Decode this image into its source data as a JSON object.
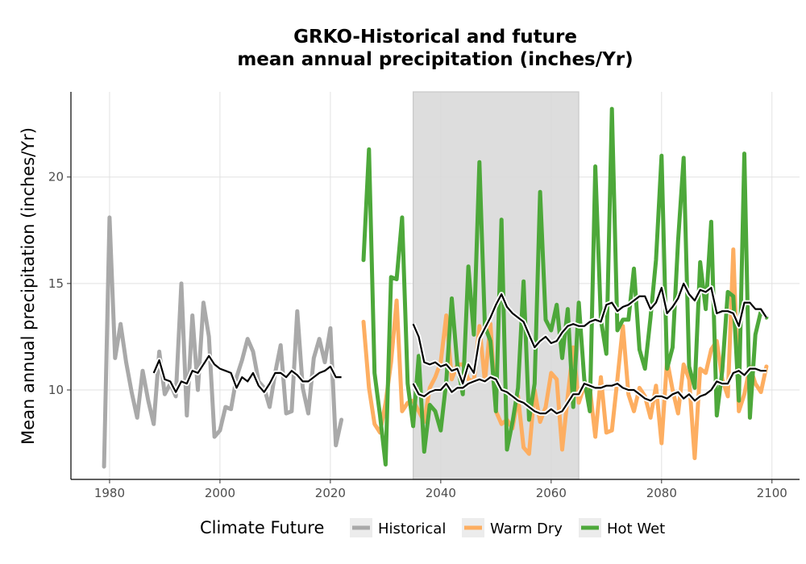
{
  "chart_data": {
    "type": "line",
    "title": [
      "GRKO-Historical and future",
      "mean annual precipitation (inches/Yr)"
    ],
    "xlabel": "",
    "ylabel": "Mean annual precipitation (inches/Yr)",
    "xlim": [
      1973,
      2105
    ],
    "ylim": [
      5.8,
      24
    ],
    "x_ticks": [
      1980,
      2000,
      2020,
      2040,
      2060,
      2080,
      2100
    ],
    "y_ticks": [
      10,
      15,
      20
    ],
    "grid": true,
    "shaded_period": [
      2035,
      2065
    ],
    "legend": {
      "title": "Climate Future",
      "position": "bottom",
      "entries": [
        "Historical",
        "Warm Dry",
        "Hot Wet"
      ]
    },
    "series": [
      {
        "name": "Historical",
        "color": "#A9A9A9",
        "x": [
          1979,
          1980,
          1981,
          1982,
          1983,
          1984,
          1985,
          1986,
          1987,
          1988,
          1989,
          1990,
          1991,
          1992,
          1993,
          1994,
          1995,
          1996,
          1997,
          1998,
          1999,
          2000,
          2001,
          2002,
          2003,
          2004,
          2005,
          2006,
          2007,
          2008,
          2009,
          2010,
          2011,
          2012,
          2013,
          2014,
          2015,
          2016,
          2017,
          2018,
          2019,
          2020,
          2021,
          2022
        ],
        "values": [
          6.4,
          18.1,
          11.5,
          13.1,
          11.3,
          9.9,
          8.7,
          10.9,
          9.5,
          8.4,
          11.8,
          9.8,
          10.3,
          9.7,
          15.0,
          8.8,
          13.5,
          10.0,
          14.1,
          12.5,
          7.8,
          8.1,
          9.2,
          9.1,
          10.6,
          11.4,
          12.4,
          11.8,
          10.4,
          10.1,
          9.2,
          10.8,
          12.1,
          8.9,
          9.0,
          13.7,
          10.1,
          8.9,
          11.5,
          12.4,
          11.3,
          12.9,
          7.4,
          8.6
        ]
      },
      {
        "name": "Warm Dry",
        "color": "#FDAE61",
        "x": [
          2026,
          2027,
          2028,
          2029,
          2030,
          2031,
          2032,
          2033,
          2034,
          2035,
          2036,
          2037,
          2038,
          2039,
          2040,
          2041,
          2042,
          2043,
          2044,
          2045,
          2046,
          2047,
          2048,
          2049,
          2050,
          2051,
          2052,
          2053,
          2054,
          2055,
          2056,
          2057,
          2058,
          2059,
          2060,
          2061,
          2062,
          2063,
          2064,
          2065,
          2066,
          2067,
          2068,
          2069,
          2070,
          2071,
          2072,
          2073,
          2074,
          2075,
          2076,
          2077,
          2078,
          2079,
          2080,
          2081,
          2082,
          2083,
          2084,
          2085,
          2086,
          2087,
          2088,
          2089,
          2090,
          2091,
          2092,
          2093,
          2094,
          2095,
          2096,
          2097,
          2098,
          2099
        ],
        "values": [
          13.2,
          10.1,
          8.4,
          8.0,
          9.4,
          11.3,
          14.2,
          9.0,
          9.4,
          9.5,
          9.0,
          8.5,
          10.1,
          10.6,
          11.3,
          13.5,
          10.5,
          11.2,
          11.2,
          10.5,
          10.4,
          13.0,
          10.4,
          13.1,
          9.0,
          8.4,
          8.6,
          8.2,
          9.7,
          7.3,
          7.0,
          10.0,
          8.5,
          9.2,
          10.8,
          10.5,
          7.2,
          9.7,
          12.0,
          9.4,
          10.2,
          10.1,
          7.8,
          10.6,
          8.0,
          8.1,
          10.5,
          13.0,
          9.8,
          9.0,
          10.1,
          9.7,
          8.7,
          10.2,
          7.5,
          11.4,
          10.0,
          8.9,
          11.2,
          10.5,
          6.8,
          11.0,
          10.8,
          11.9,
          12.3,
          10.5,
          9.7,
          16.6,
          9.0,
          9.8,
          11.1,
          10.3,
          9.9,
          11.1
        ]
      },
      {
        "name": "Hot Wet",
        "color": "#4DA83A",
        "x": [
          2026,
          2027,
          2028,
          2029,
          2030,
          2031,
          2032,
          2033,
          2034,
          2035,
          2036,
          2037,
          2038,
          2039,
          2040,
          2041,
          2042,
          2043,
          2044,
          2045,
          2046,
          2047,
          2048,
          2049,
          2050,
          2051,
          2052,
          2053,
          2054,
          2055,
          2056,
          2057,
          2058,
          2059,
          2060,
          2061,
          2062,
          2063,
          2064,
          2065,
          2066,
          2067,
          2068,
          2069,
          2070,
          2071,
          2072,
          2073,
          2074,
          2075,
          2076,
          2077,
          2078,
          2079,
          2080,
          2081,
          2082,
          2083,
          2084,
          2085,
          2086,
          2087,
          2088,
          2089,
          2090,
          2091,
          2092,
          2093,
          2094,
          2095,
          2096,
          2097,
          2098,
          2099
        ],
        "values": [
          16.1,
          21.3,
          10.8,
          8.8,
          6.5,
          15.3,
          15.2,
          18.1,
          10.3,
          8.3,
          11.6,
          7.1,
          9.3,
          9.0,
          8.1,
          10.4,
          14.3,
          11.2,
          9.8,
          15.8,
          12.6,
          20.7,
          13.0,
          12.3,
          9.0,
          18.0,
          7.2,
          8.5,
          10.1,
          15.1,
          8.6,
          10.3,
          19.3,
          13.3,
          12.8,
          14.0,
          11.5,
          13.8,
          9.2,
          14.1,
          10.5,
          9.0,
          20.5,
          13.3,
          11.7,
          23.2,
          12.8,
          13.3,
          13.3,
          15.7,
          11.9,
          11.0,
          13.4,
          16.1,
          21.0,
          11.0,
          12.0,
          17.0,
          20.9,
          11.1,
          10.1,
          16.0,
          13.8,
          17.9,
          8.8,
          10.9,
          14.6,
          14.4,
          9.5,
          21.1,
          8.7,
          12.6,
          13.7,
          13.4
        ]
      }
    ],
    "smoothed": {
      "color": "#000000",
      "lines": [
        {
          "name": "Historical",
          "x": [
            1988,
            1989,
            1990,
            1991,
            1992,
            1993,
            1994,
            1995,
            1996,
            1997,
            1998,
            1999,
            2000,
            2001,
            2002,
            2003,
            2004,
            2005,
            2006,
            2007,
            2008,
            2009,
            2010,
            2011,
            2012,
            2013,
            2014,
            2015,
            2016,
            2017,
            2018,
            2019,
            2020,
            2021,
            2022
          ],
          "values": [
            10.8,
            11.4,
            10.5,
            10.4,
            9.9,
            10.4,
            10.3,
            10.9,
            10.8,
            11.2,
            11.6,
            11.2,
            11.0,
            10.9,
            10.8,
            10.1,
            10.6,
            10.4,
            10.8,
            10.2,
            9.9,
            10.3,
            10.8,
            10.8,
            10.6,
            10.9,
            10.7,
            10.4,
            10.4,
            10.6,
            10.8,
            10.9,
            11.1,
            10.6,
            10.6
          ]
        },
        {
          "name": "Warm Dry",
          "x": [
            2035,
            2036,
            2037,
            2038,
            2039,
            2040,
            2041,
            2042,
            2043,
            2044,
            2045,
            2046,
            2047,
            2048,
            2049,
            2050,
            2051,
            2052,
            2053,
            2054,
            2055,
            2056,
            2057,
            2058,
            2059,
            2060,
            2061,
            2062,
            2063,
            2064,
            2065,
            2066,
            2067,
            2068,
            2069,
            2070,
            2071,
            2072,
            2073,
            2074,
            2075,
            2076,
            2077,
            2078,
            2079,
            2080,
            2081,
            2082,
            2083,
            2084,
            2085,
            2086,
            2087,
            2088,
            2089,
            2090,
            2091,
            2092,
            2093,
            2094,
            2095,
            2096,
            2097,
            2098,
            2099
          ],
          "values": [
            10.3,
            9.8,
            9.7,
            9.9,
            10.0,
            10.0,
            10.3,
            9.9,
            10.1,
            10.1,
            10.3,
            10.4,
            10.5,
            10.4,
            10.6,
            10.5,
            10.0,
            9.9,
            9.7,
            9.5,
            9.4,
            9.2,
            9.0,
            8.9,
            8.9,
            9.1,
            8.9,
            9.0,
            9.4,
            9.8,
            9.8,
            10.3,
            10.2,
            10.1,
            10.1,
            10.2,
            10.2,
            10.3,
            10.1,
            10.0,
            10.0,
            9.8,
            9.6,
            9.5,
            9.7,
            9.7,
            9.6,
            9.8,
            9.9,
            9.6,
            9.8,
            9.5,
            9.7,
            9.8,
            10.0,
            10.4,
            10.3,
            10.3,
            10.8,
            10.9,
            10.7,
            11.0,
            11.0,
            10.9,
            10.9
          ]
        },
        {
          "name": "Hot Wet",
          "x": [
            2035,
            2036,
            2037,
            2038,
            2039,
            2040,
            2041,
            2042,
            2043,
            2044,
            2045,
            2046,
            2047,
            2048,
            2049,
            2050,
            2051,
            2052,
            2053,
            2054,
            2055,
            2056,
            2057,
            2058,
            2059,
            2060,
            2061,
            2062,
            2063,
            2064,
            2065,
            2066,
            2067,
            2068,
            2069,
            2070,
            2071,
            2072,
            2073,
            2074,
            2075,
            2076,
            2077,
            2078,
            2079,
            2080,
            2081,
            2082,
            2083,
            2084,
            2085,
            2086,
            2087,
            2088,
            2089,
            2090,
            2091,
            2092,
            2093,
            2094,
            2095,
            2096,
            2097,
            2098,
            2099
          ],
          "values": [
            13.1,
            12.5,
            11.3,
            11.2,
            11.3,
            11.1,
            11.2,
            10.9,
            11.0,
            10.3,
            11.2,
            10.8,
            12.4,
            12.9,
            13.4,
            14.0,
            14.5,
            13.9,
            13.6,
            13.4,
            13.2,
            12.6,
            12.0,
            12.3,
            12.5,
            12.2,
            12.3,
            12.7,
            13.0,
            13.1,
            13.0,
            13.0,
            13.2,
            13.3,
            13.2,
            14.0,
            14.1,
            13.7,
            13.9,
            14.0,
            14.2,
            14.4,
            14.4,
            13.8,
            14.1,
            14.8,
            13.6,
            13.9,
            14.3,
            15.0,
            14.5,
            14.2,
            14.7,
            14.6,
            14.8,
            13.6,
            13.7,
            13.7,
            13.6,
            13.0,
            14.1,
            14.1,
            13.8,
            13.8,
            13.4
          ]
        }
      ]
    }
  }
}
